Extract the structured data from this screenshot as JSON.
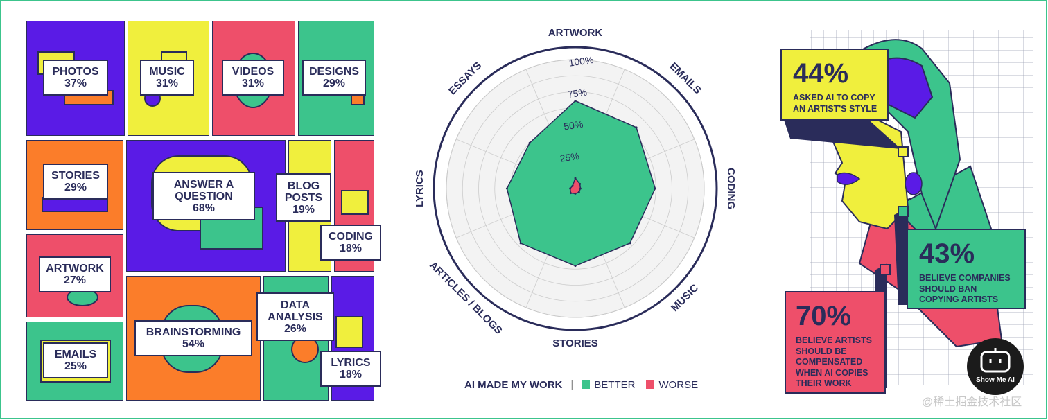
{
  "chart_data": [
    {
      "type": "treemap",
      "tiles": [
        {
          "key": "photos",
          "label_lines": [
            "PHOTOS",
            "37%"
          ],
          "category": "PHOTOS",
          "value": 37,
          "color": "#5a1be6"
        },
        {
          "key": "music",
          "label_lines": [
            "MUSIC",
            "31%"
          ],
          "category": "MUSIC",
          "value": 31,
          "color": "#f0ef3d"
        },
        {
          "key": "videos",
          "label_lines": [
            "VIDEOS",
            "31%"
          ],
          "category": "VIDEOS",
          "value": 31,
          "color": "#ee4f6a"
        },
        {
          "key": "designs",
          "label_lines": [
            "DESIGNS",
            "29%"
          ],
          "category": "DESIGNS",
          "value": 29,
          "color": "#3cc48c"
        },
        {
          "key": "stories",
          "label_lines": [
            "STORIES",
            "29%"
          ],
          "category": "STORIES",
          "value": 29,
          "color": "#fb7d2a"
        },
        {
          "key": "answer",
          "label_lines": [
            "ANSWER A",
            "QUESTION",
            "68%"
          ],
          "category": "ANSWER A QUESTION",
          "value": 68,
          "color": "#5a1be6"
        },
        {
          "key": "blog",
          "label_lines": [
            "BLOG",
            "POSTS",
            "19%"
          ],
          "category": "BLOG POSTS",
          "value": 19,
          "color": "#f0ef3d"
        },
        {
          "key": "coding",
          "label_lines": [
            "CODING",
            "18%"
          ],
          "category": "CODING",
          "value": 18,
          "color": "#ee4f6a"
        },
        {
          "key": "artwork",
          "label_lines": [
            "ARTWORK",
            "27%"
          ],
          "category": "ARTWORK",
          "value": 27,
          "color": "#ee4f6a"
        },
        {
          "key": "emails",
          "label_lines": [
            "EMAILS",
            "25%"
          ],
          "category": "EMAILS",
          "value": 25,
          "color": "#3cc48c"
        },
        {
          "key": "brain",
          "label_lines": [
            "BRAINSTORMING",
            "54%"
          ],
          "category": "BRAINSTORMING",
          "value": 54,
          "color": "#fb7d2a"
        },
        {
          "key": "data",
          "label_lines": [
            "DATA",
            "ANALYSIS",
            "26%"
          ],
          "category": "DATA ANALYSIS",
          "value": 26,
          "color": "#3cc48c"
        },
        {
          "key": "lyrics",
          "label_lines": [
            "LYRICS",
            "18%"
          ],
          "category": "LYRICS",
          "value": 18,
          "color": "#5a1be6"
        }
      ]
    },
    {
      "type": "radar",
      "axes": [
        "ARTWORK",
        "EMAILS",
        "CODING",
        "MUSIC",
        "STORIES",
        "ARTICLES / BLOGS",
        "LYRICS",
        "ESSAYS"
      ],
      "tick_labels": [
        "25%",
        "50%",
        "75%",
        "100%"
      ],
      "range": [
        0,
        100
      ],
      "series": [
        {
          "name": "BETTER",
          "values": [
            68,
            67,
            62,
            60,
            60,
            60,
            53,
            50
          ],
          "color": "#3cc48c"
        },
        {
          "name": "WORSE",
          "values": [
            8,
            5,
            4,
            4,
            4,
            5,
            4,
            3
          ],
          "color": "#ee4f6a"
        }
      ],
      "legend": {
        "title": "AI MADE MY WORK",
        "separator": "|"
      }
    }
  ],
  "stats": [
    {
      "key": "s44",
      "value": "44%",
      "lines": [
        "ASKED AI TO COPY",
        "AN ARTIST'S STYLE"
      ],
      "color": "#f0ef3d"
    },
    {
      "key": "s43",
      "value": "43%",
      "lines": [
        "BELIEVE COMPANIES",
        "SHOULD BAN",
        "COPYING ARTISTS"
      ],
      "color": "#3cc48c"
    },
    {
      "key": "s70",
      "value": "70%",
      "lines": [
        "BELIEVE ARTISTS",
        "SHOULD BE",
        "COMPENSATED",
        "WHEN AI COPIES",
        "THEIR WORK"
      ],
      "color": "#ee4f6a"
    }
  ],
  "colors": {
    "ink": "#2a2c5a",
    "purple": "#5a1be6",
    "yellow": "#f0ef3d",
    "pink": "#ee4f6a",
    "green": "#3cc48c",
    "orange": "#fb7d2a"
  },
  "badge": {
    "text": "Show Me AI",
    "icon": "robot-face-icon"
  },
  "watermark": "@稀土掘金技术社区"
}
